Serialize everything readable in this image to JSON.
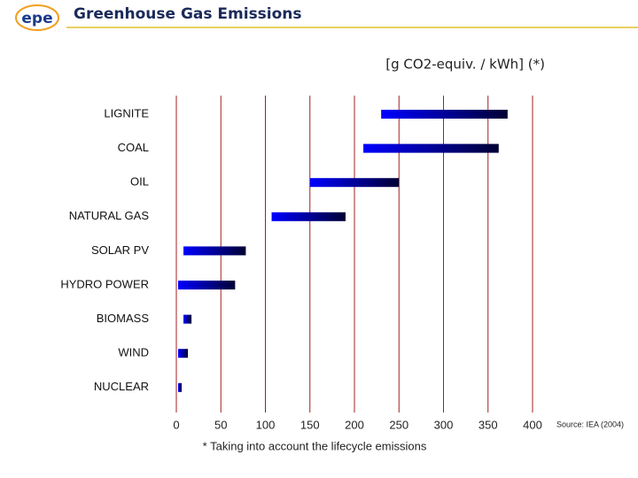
{
  "logo": "epe",
  "chart_data": {
    "type": "range-bar",
    "title": "Greenhouse Gas Emissions",
    "unit_label": "[g CO2-equiv. / kWh] (*)",
    "footnote": "* Taking into account the lifecycle emissions",
    "source": "Source: IEA (2004)",
    "categories": [
      "LIGNITE",
      "COAL",
      "OIL",
      "NATURAL GAS",
      "SOLAR PV",
      "HYDRO POWER",
      "BIOMASS",
      "WIND",
      "NUCLEAR"
    ],
    "starts": [
      230,
      210,
      150,
      107,
      8,
      2,
      8,
      2,
      2
    ],
    "ends": [
      372,
      362,
      250,
      190,
      78,
      66,
      17,
      13,
      6
    ],
    "colors": [
      "#0000ff",
      "#000033"
    ],
    "xlim": [
      0,
      400
    ],
    "xticks": [
      0,
      50,
      100,
      150,
      200,
      250,
      300,
      350,
      400
    ],
    "grid": true
  }
}
